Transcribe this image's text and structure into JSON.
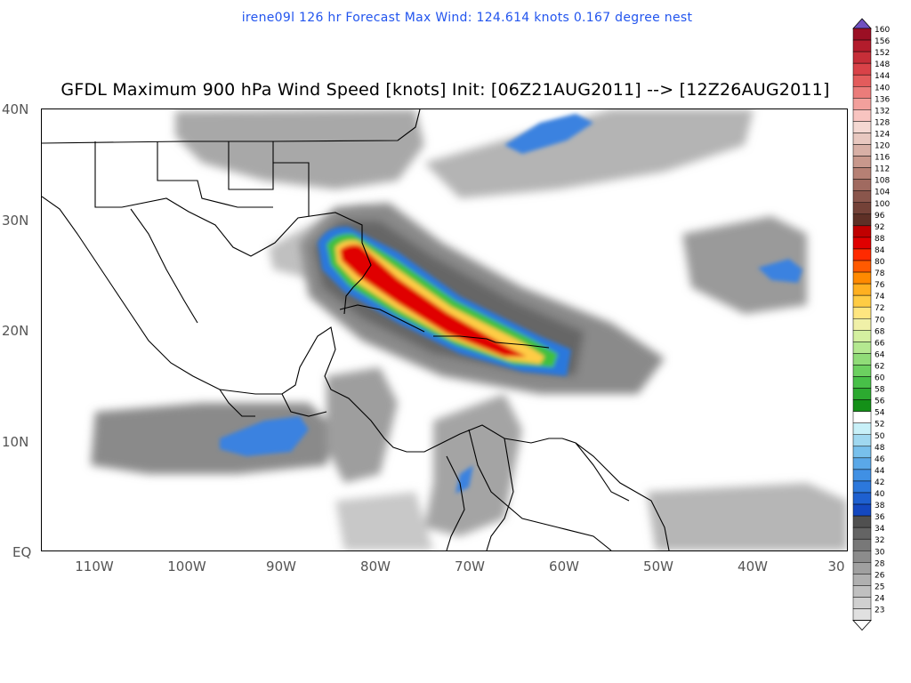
{
  "subtitle": "irene09l 126 hr Forecast Max Wind: 124.614 knots 0.167 degree nest",
  "title": "GFDL Maximum 900 hPa Wind Speed [knots] Init: [06Z21AUG2011] --> [12Z26AUG2011]",
  "lat_labels": [
    "40N",
    "30N",
    "20N",
    "10N",
    "EQ"
  ],
  "lon_labels": [
    "110W",
    "100W",
    "90W",
    "80W",
    "70W",
    "60W",
    "50W",
    "40W",
    "30"
  ],
  "colorbar": {
    "levels": [
      "160",
      "156",
      "152",
      "148",
      "144",
      "140",
      "136",
      "132",
      "128",
      "124",
      "120",
      "116",
      "112",
      "108",
      "104",
      "100",
      "96",
      "92",
      "88",
      "84",
      "80",
      "78",
      "76",
      "74",
      "72",
      "70",
      "68",
      "66",
      "64",
      "62",
      "60",
      "58",
      "56",
      "54",
      "52",
      "50",
      "48",
      "46",
      "44",
      "42",
      "40",
      "38",
      "36",
      "34",
      "32",
      "30",
      "28",
      "26",
      "25",
      "24",
      "23"
    ],
    "colors": [
      "#9b0f24",
      "#b31c2c",
      "#c62e38",
      "#d94248",
      "#e35c5c",
      "#eb7c7a",
      "#f2a09c",
      "#f8c4c0",
      "#f4d8d2",
      "#e8c8c0",
      "#d8b0a6",
      "#c8988c",
      "#b68074",
      "#a06a60",
      "#8a564c",
      "#744238",
      "#5e3026",
      "#c00000",
      "#e00000",
      "#ff2a00",
      "#ff5a00",
      "#ff8a00",
      "#ffb020",
      "#ffcc44",
      "#ffe680",
      "#f0f0a8",
      "#d4f0a0",
      "#b4e890",
      "#90dc78",
      "#6cd060",
      "#48c048",
      "#2caa30",
      "#149018",
      "#ffffff",
      "#c8f0f8",
      "#a0d8f0",
      "#78c0ec",
      "#5aa8e8",
      "#4090e4",
      "#2c78dc",
      "#1e60d0",
      "#1448c0",
      "#505050",
      "#646464",
      "#787878",
      "#8c8c8c",
      "#a0a0a0",
      "#b0b0b0",
      "#c0c0c0",
      "#d0d0d0",
      "#e0e0e0"
    ]
  }
}
